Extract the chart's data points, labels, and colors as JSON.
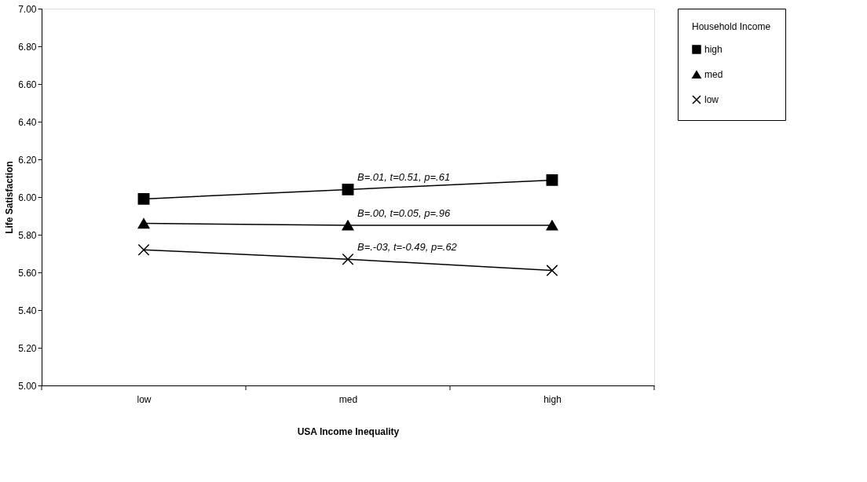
{
  "chart_data": {
    "type": "line",
    "xlabel": "USA Income Inequality",
    "ylabel": "Life Satisfaction",
    "legend_title": "Household Income",
    "categories": [
      "low",
      "med",
      "high"
    ],
    "series": [
      {
        "name": "high",
        "color": "#000000",
        "marker": "square",
        "values": [
          5.99,
          6.04,
          6.09
        ]
      },
      {
        "name": "med",
        "color": "#000000",
        "marker": "triangle",
        "values": [
          5.86,
          5.85,
          5.85
        ]
      },
      {
        "name": "low",
        "color": "#000000",
        "marker": "cross",
        "values": [
          5.72,
          5.67,
          5.61
        ]
      }
    ],
    "ylim": [
      5.0,
      7.0
    ],
    "yticks": [
      {
        "value": 5.0,
        "label": "5.00"
      },
      {
        "value": 5.2,
        "label": "5.20"
      },
      {
        "value": 5.4,
        "label": "5.40"
      },
      {
        "value": 5.6,
        "label": "5.60"
      },
      {
        "value": 5.8,
        "label": "5.80"
      },
      {
        "value": 6.0,
        "label": "6.00"
      },
      {
        "value": 6.2,
        "label": "6.20"
      },
      {
        "value": 6.4,
        "label": "6.40"
      },
      {
        "value": 6.6,
        "label": "6.60"
      },
      {
        "value": 6.8,
        "label": "6.80"
      },
      {
        "value": 7.0,
        "label": "7.00"
      }
    ],
    "annotations": [
      {
        "text": "B=.01, t=0.51, p=.61",
        "x": "med",
        "y": 6.04
      },
      {
        "text": "B=.00, t=0.05, p=.96",
        "x": "med",
        "y": 5.85
      },
      {
        "text": "B=.-03, t=-0.49, p=.62",
        "x": "med",
        "y": 5.67
      }
    ],
    "grid": false,
    "legend": "right",
    "line_style": "solid"
  }
}
